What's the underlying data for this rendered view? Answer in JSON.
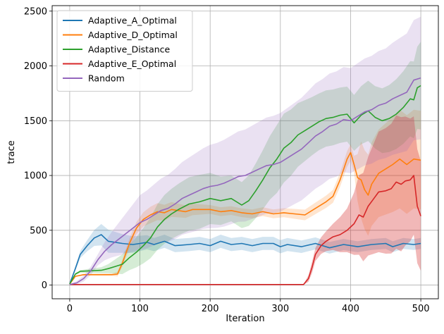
{
  "chart_data": {
    "type": "line",
    "xlabel": "Iteration",
    "ylabel": "trace",
    "xlim": [
      -25,
      525
    ],
    "ylim": [
      -125,
      2550
    ],
    "xticks": [
      0,
      100,
      200,
      300,
      400,
      500
    ],
    "xtick_labels": [
      "0",
      "100",
      "200",
      "300",
      "400",
      "500"
    ],
    "yticks": [
      0,
      500,
      1000,
      1500,
      2000,
      2500
    ],
    "ytick_labels": [
      "0",
      "500",
      "1000",
      "1500",
      "2000",
      "2500"
    ],
    "grid": true,
    "legend_position": "top-left",
    "series": [
      {
        "name": "Adaptive_A_Optimal",
        "color": "#1f77b4",
        "band_opacity": 0.2,
        "points": [
          [
            0,
            10
          ],
          [
            8,
            150
          ],
          [
            15,
            280
          ],
          [
            25,
            360
          ],
          [
            35,
            430
          ],
          [
            45,
            460
          ],
          [
            55,
            400
          ],
          [
            65,
            390
          ],
          [
            75,
            380
          ],
          [
            90,
            370
          ],
          [
            100,
            380
          ],
          [
            110,
            390
          ],
          [
            120,
            370
          ],
          [
            135,
            400
          ],
          [
            150,
            360
          ],
          [
            170,
            370
          ],
          [
            185,
            380
          ],
          [
            200,
            360
          ],
          [
            215,
            400
          ],
          [
            230,
            370
          ],
          [
            245,
            380
          ],
          [
            260,
            360
          ],
          [
            275,
            380
          ],
          [
            290,
            380
          ],
          [
            300,
            350
          ],
          [
            310,
            370
          ],
          [
            330,
            350
          ],
          [
            350,
            380
          ],
          [
            370,
            340
          ],
          [
            390,
            370
          ],
          [
            410,
            350
          ],
          [
            430,
            370
          ],
          [
            450,
            380
          ],
          [
            460,
            350
          ],
          [
            475,
            380
          ],
          [
            490,
            370
          ],
          [
            500,
            380
          ]
        ],
        "band_halfwidth": [
          [
            0,
            5
          ],
          [
            30,
            60
          ],
          [
            50,
            110
          ],
          [
            80,
            80
          ],
          [
            120,
            60
          ],
          [
            200,
            60
          ],
          [
            300,
            60
          ],
          [
            400,
            50
          ],
          [
            500,
            50
          ]
        ]
      },
      {
        "name": "Adaptive_D_Optimal",
        "color": "#ff7f0e",
        "band_opacity": 0.2,
        "points": [
          [
            0,
            10
          ],
          [
            8,
            80
          ],
          [
            20,
            95
          ],
          [
            40,
            95
          ],
          [
            60,
            95
          ],
          [
            68,
            100
          ],
          [
            75,
            200
          ],
          [
            85,
            380
          ],
          [
            95,
            520
          ],
          [
            105,
            600
          ],
          [
            115,
            640
          ],
          [
            125,
            670
          ],
          [
            135,
            660
          ],
          [
            145,
            690
          ],
          [
            155,
            680
          ],
          [
            165,
            670
          ],
          [
            175,
            690
          ],
          [
            185,
            690
          ],
          [
            200,
            690
          ],
          [
            215,
            670
          ],
          [
            230,
            680
          ],
          [
            245,
            660
          ],
          [
            260,
            650
          ],
          [
            275,
            670
          ],
          [
            290,
            650
          ],
          [
            305,
            660
          ],
          [
            320,
            650
          ],
          [
            335,
            640
          ],
          [
            350,
            700
          ],
          [
            365,
            760
          ],
          [
            375,
            810
          ],
          [
            385,
            960
          ],
          [
            395,
            1150
          ],
          [
            400,
            1210
          ],
          [
            405,
            1100
          ],
          [
            410,
            980
          ],
          [
            415,
            960
          ],
          [
            420,
            870
          ],
          [
            425,
            820
          ],
          [
            430,
            920
          ],
          [
            440,
            1020
          ],
          [
            450,
            1060
          ],
          [
            460,
            1100
          ],
          [
            470,
            1150
          ],
          [
            480,
            1100
          ],
          [
            490,
            1150
          ],
          [
            500,
            1140
          ]
        ],
        "band_halfwidth": [
          [
            0,
            5
          ],
          [
            60,
            10
          ],
          [
            80,
            40
          ],
          [
            120,
            80
          ],
          [
            200,
            40
          ],
          [
            300,
            40
          ],
          [
            380,
            60
          ],
          [
            405,
            80
          ],
          [
            415,
            350
          ],
          [
            440,
            400
          ],
          [
            470,
            450
          ],
          [
            500,
            450
          ]
        ]
      },
      {
        "name": "Adaptive_Distance",
        "color": "#2ca02c",
        "band_opacity": 0.2,
        "points": [
          [
            0,
            10
          ],
          [
            8,
            100
          ],
          [
            15,
            125
          ],
          [
            30,
            130
          ],
          [
            45,
            135
          ],
          [
            55,
            150
          ],
          [
            65,
            170
          ],
          [
            75,
            190
          ],
          [
            85,
            250
          ],
          [
            95,
            300
          ],
          [
            105,
            360
          ],
          [
            115,
            430
          ],
          [
            125,
            530
          ],
          [
            135,
            600
          ],
          [
            145,
            650
          ],
          [
            155,
            690
          ],
          [
            170,
            740
          ],
          [
            185,
            760
          ],
          [
            200,
            790
          ],
          [
            215,
            770
          ],
          [
            230,
            790
          ],
          [
            245,
            730
          ],
          [
            255,
            770
          ],
          [
            265,
            860
          ],
          [
            275,
            960
          ],
          [
            285,
            1070
          ],
          [
            295,
            1150
          ],
          [
            305,
            1250
          ],
          [
            315,
            1300
          ],
          [
            325,
            1370
          ],
          [
            335,
            1410
          ],
          [
            345,
            1450
          ],
          [
            355,
            1490
          ],
          [
            365,
            1520
          ],
          [
            375,
            1530
          ],
          [
            385,
            1550
          ],
          [
            395,
            1560
          ],
          [
            405,
            1480
          ],
          [
            415,
            1550
          ],
          [
            425,
            1590
          ],
          [
            435,
            1530
          ],
          [
            445,
            1500
          ],
          [
            455,
            1520
          ],
          [
            465,
            1560
          ],
          [
            475,
            1620
          ],
          [
            485,
            1700
          ],
          [
            490,
            1690
          ],
          [
            495,
            1800
          ],
          [
            500,
            1820
          ]
        ],
        "band_halfwidth": [
          [
            0,
            5
          ],
          [
            50,
            30
          ],
          [
            100,
            150
          ],
          [
            130,
            220
          ],
          [
            180,
            250
          ],
          [
            240,
            200
          ],
          [
            300,
            320
          ],
          [
            350,
            260
          ],
          [
            400,
            250
          ],
          [
            450,
            300
          ],
          [
            490,
            350
          ],
          [
            500,
            400
          ]
        ]
      },
      {
        "name": "Adaptive_E_Optimal",
        "color": "#d62728",
        "band_opacity": 0.33,
        "points": [
          [
            0,
            5
          ],
          [
            50,
            5
          ],
          [
            100,
            5
          ],
          [
            150,
            5
          ],
          [
            200,
            5
          ],
          [
            250,
            5
          ],
          [
            300,
            5
          ],
          [
            333,
            5
          ],
          [
            340,
            60
          ],
          [
            345,
            160
          ],
          [
            350,
            280
          ],
          [
            358,
            360
          ],
          [
            365,
            400
          ],
          [
            375,
            440
          ],
          [
            385,
            460
          ],
          [
            395,
            500
          ],
          [
            405,
            560
          ],
          [
            412,
            640
          ],
          [
            418,
            620
          ],
          [
            425,
            720
          ],
          [
            432,
            780
          ],
          [
            440,
            850
          ],
          [
            450,
            860
          ],
          [
            458,
            880
          ],
          [
            465,
            940
          ],
          [
            472,
            920
          ],
          [
            478,
            950
          ],
          [
            485,
            960
          ],
          [
            490,
            1000
          ],
          [
            495,
            720
          ],
          [
            500,
            630
          ]
        ],
        "band_halfwidth": [
          [
            0,
            2
          ],
          [
            333,
            2
          ],
          [
            345,
            50
          ],
          [
            370,
            100
          ],
          [
            400,
            220
          ],
          [
            410,
            350
          ],
          [
            440,
            550
          ],
          [
            470,
            620
          ],
          [
            500,
            500
          ]
        ]
      },
      {
        "name": "Random",
        "color": "#9467bd",
        "band_opacity": 0.2,
        "points": [
          [
            0,
            5
          ],
          [
            10,
            20
          ],
          [
            20,
            60
          ],
          [
            30,
            130
          ],
          [
            40,
            230
          ],
          [
            50,
            310
          ],
          [
            60,
            370
          ],
          [
            70,
            420
          ],
          [
            80,
            470
          ],
          [
            90,
            520
          ],
          [
            100,
            570
          ],
          [
            110,
            600
          ],
          [
            120,
            640
          ],
          [
            130,
            680
          ],
          [
            140,
            700
          ],
          [
            150,
            740
          ],
          [
            160,
            790
          ],
          [
            170,
            820
          ],
          [
            180,
            850
          ],
          [
            190,
            880
          ],
          [
            200,
            900
          ],
          [
            210,
            910
          ],
          [
            220,
            930
          ],
          [
            230,
            960
          ],
          [
            240,
            990
          ],
          [
            250,
            1000
          ],
          [
            260,
            1030
          ],
          [
            270,
            1060
          ],
          [
            280,
            1090
          ],
          [
            290,
            1100
          ],
          [
            300,
            1120
          ],
          [
            310,
            1160
          ],
          [
            320,
            1200
          ],
          [
            330,
            1240
          ],
          [
            340,
            1300
          ],
          [
            350,
            1360
          ],
          [
            360,
            1400
          ],
          [
            370,
            1450
          ],
          [
            380,
            1470
          ],
          [
            390,
            1510
          ],
          [
            400,
            1500
          ],
          [
            410,
            1540
          ],
          [
            420,
            1580
          ],
          [
            430,
            1600
          ],
          [
            440,
            1640
          ],
          [
            450,
            1660
          ],
          [
            460,
            1700
          ],
          [
            470,
            1730
          ],
          [
            480,
            1760
          ],
          [
            490,
            1870
          ],
          [
            500,
            1890
          ]
        ],
        "band_halfwidth": [
          [
            0,
            5
          ],
          [
            40,
            50
          ],
          [
            100,
            250
          ],
          [
            150,
            320
          ],
          [
            200,
            380
          ],
          [
            250,
            420
          ],
          [
            300,
            450
          ],
          [
            350,
            480
          ],
          [
            400,
            480
          ],
          [
            450,
            500
          ],
          [
            500,
            560
          ]
        ]
      }
    ]
  }
}
